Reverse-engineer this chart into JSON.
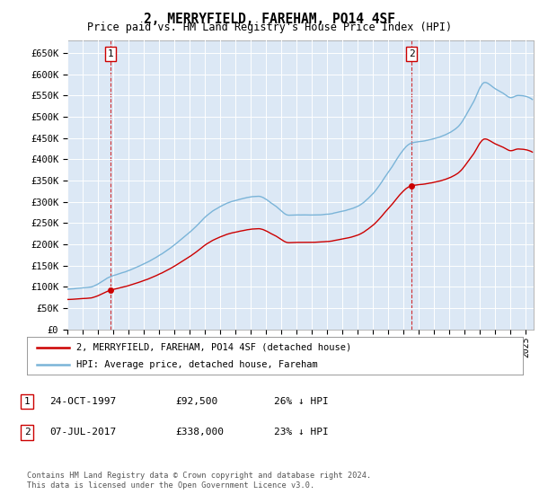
{
  "title": "2, MERRYFIELD, FAREHAM, PO14 4SF",
  "subtitle": "Price paid vs. HM Land Registry's House Price Index (HPI)",
  "xlim_start": 1995.0,
  "xlim_end": 2025.5,
  "ylim_bottom": 0,
  "ylim_top": 680000,
  "yticks": [
    0,
    50000,
    100000,
    150000,
    200000,
    250000,
    300000,
    350000,
    400000,
    450000,
    500000,
    550000,
    600000,
    650000
  ],
  "ytick_labels": [
    "£0",
    "£50K",
    "£100K",
    "£150K",
    "£200K",
    "£250K",
    "£300K",
    "£350K",
    "£400K",
    "£450K",
    "£500K",
    "£550K",
    "£600K",
    "£650K"
  ],
  "hpi_color": "#7ab4d8",
  "price_color": "#cc0000",
  "background_color": "#dce8f5",
  "sale1_date": 1997.81,
  "sale1_price": 92500,
  "sale1_label": "1",
  "sale2_date": 2017.51,
  "sale2_price": 338000,
  "sale2_label": "2",
  "legend_line1": "2, MERRYFIELD, FAREHAM, PO14 4SF (detached house)",
  "legend_line2": "HPI: Average price, detached house, Fareham",
  "note1_label": "1",
  "note1_date": "24-OCT-1997",
  "note1_price": "£92,500",
  "note1_hpi": "26% ↓ HPI",
  "note2_label": "2",
  "note2_date": "07-JUL-2017",
  "note2_price": "£338,000",
  "note2_hpi": "23% ↓ HPI",
  "footer": "Contains HM Land Registry data © Crown copyright and database right 2024.\nThis data is licensed under the Open Government Licence v3.0."
}
